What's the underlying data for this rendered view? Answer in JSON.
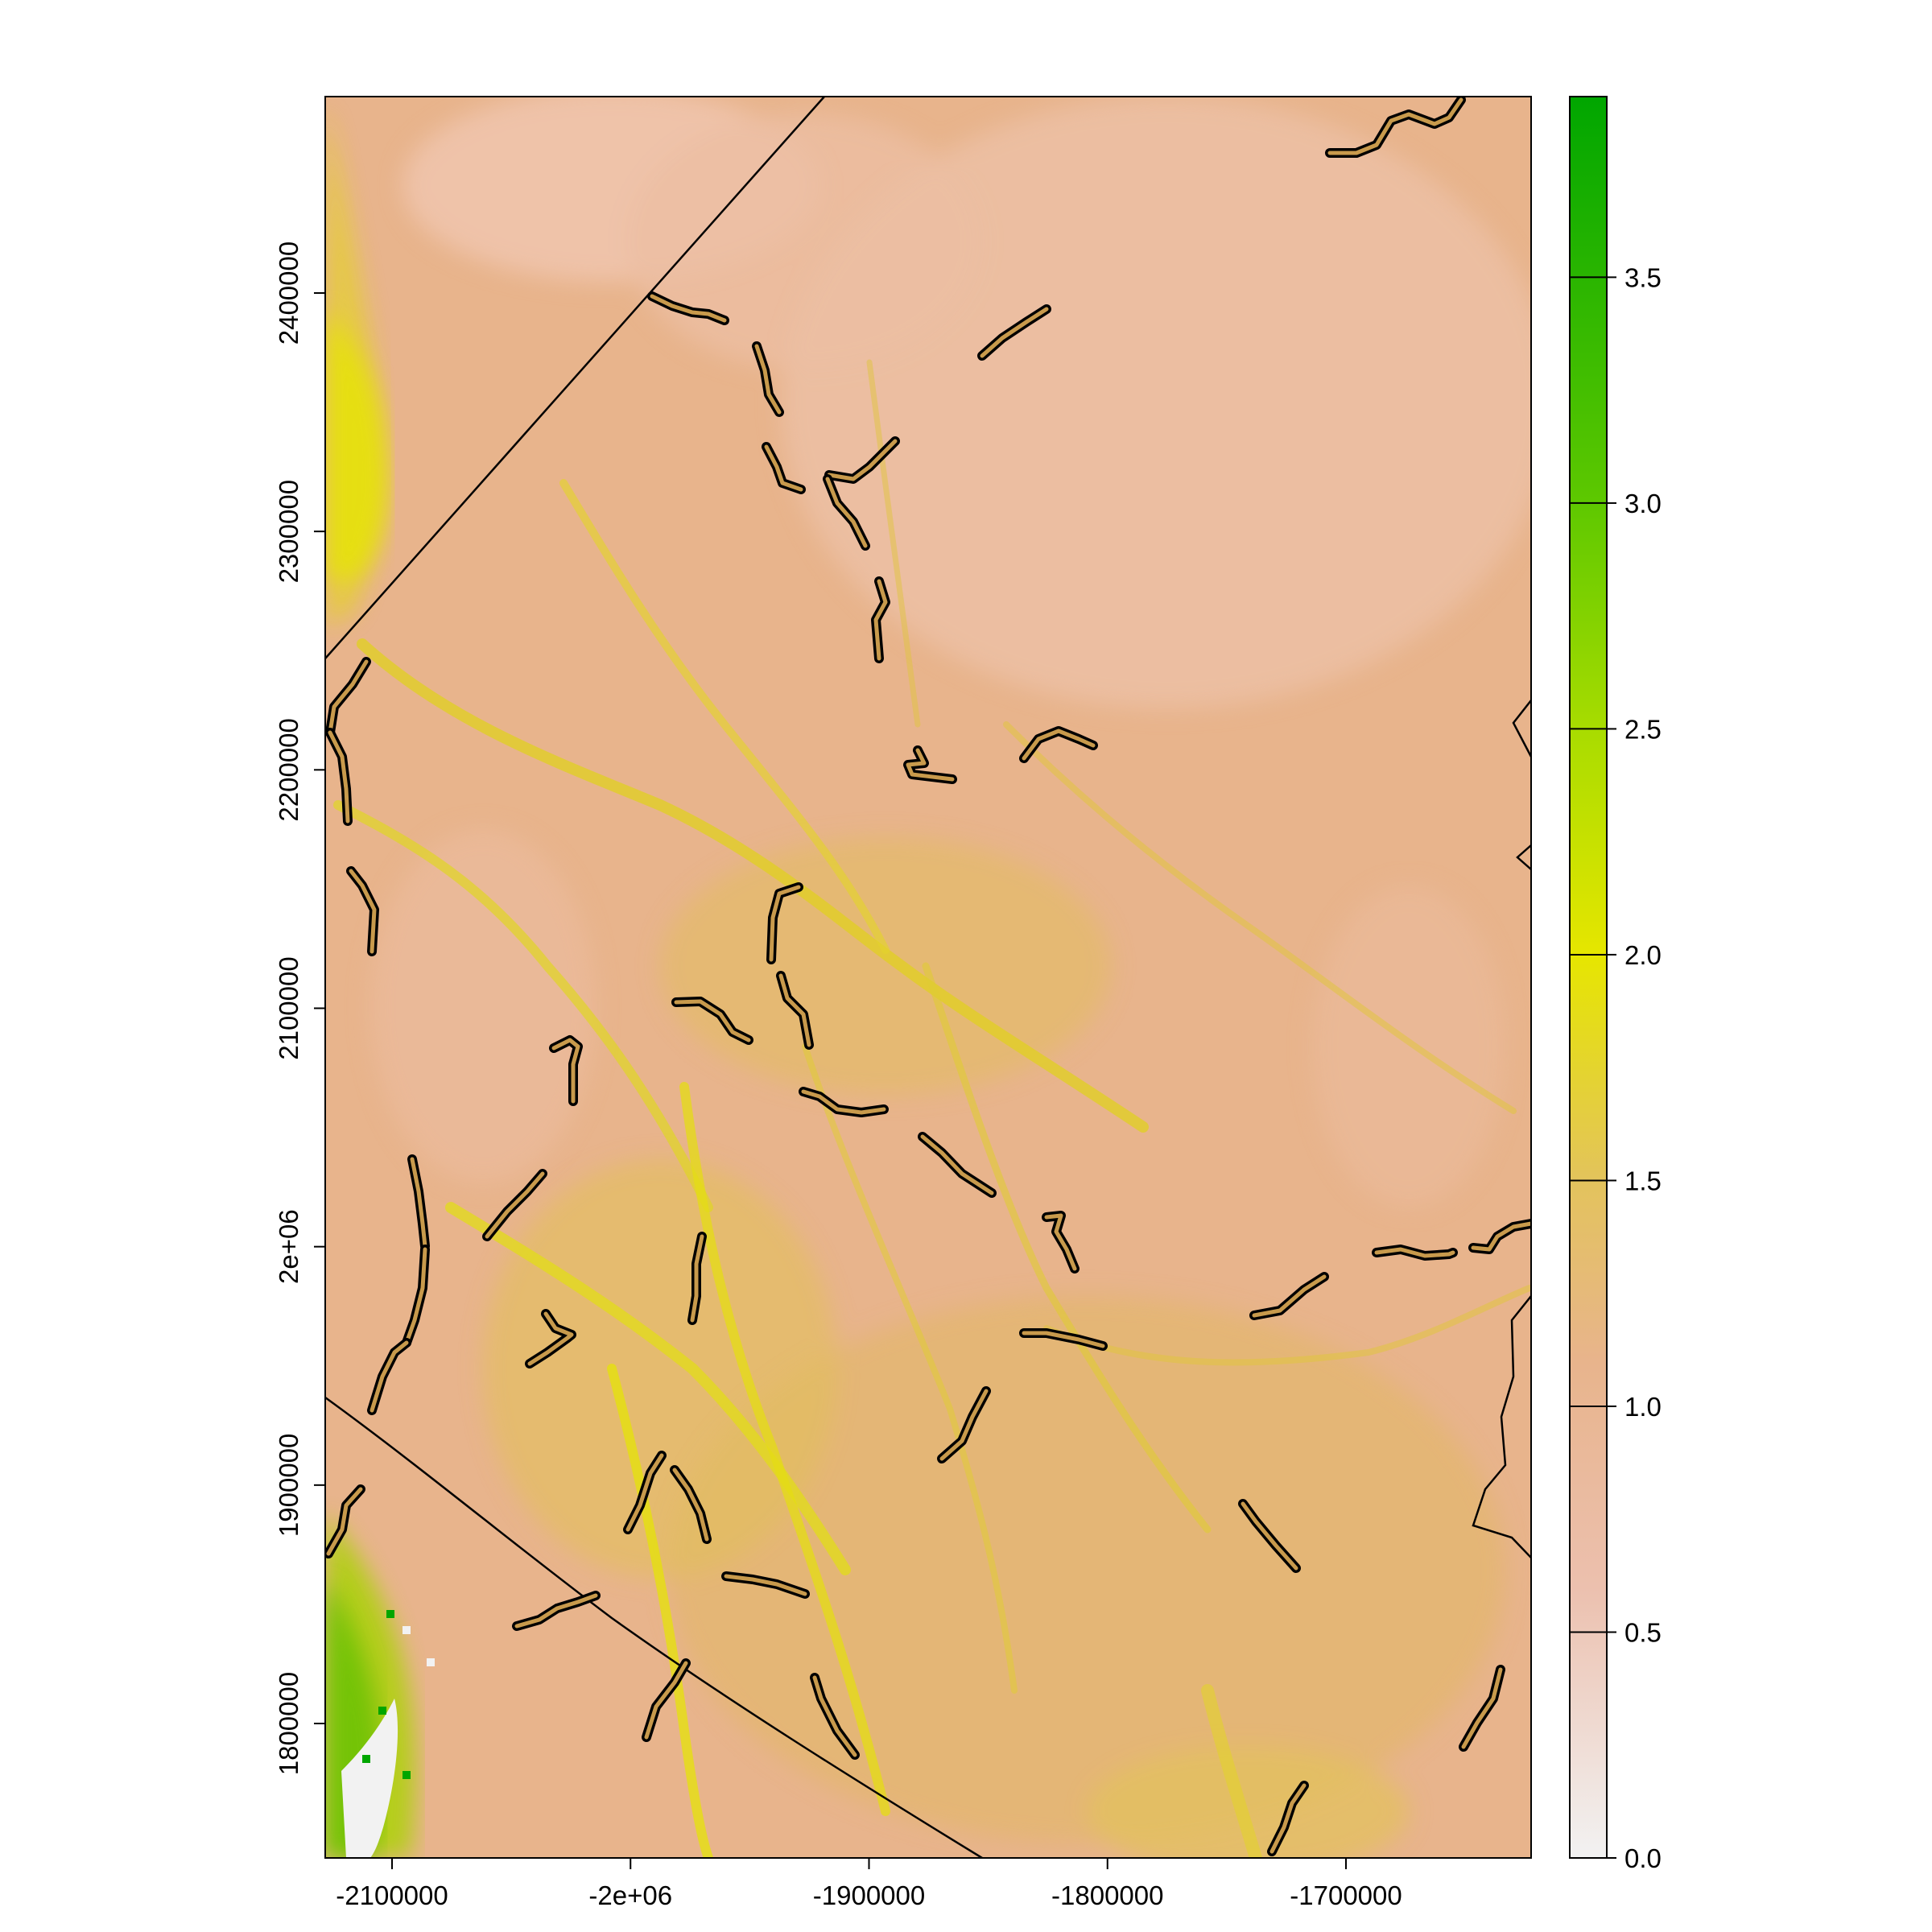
{
  "map": {
    "x_axis": {
      "ticks": [
        {
          "value": -2100000,
          "label": "-2100000"
        },
        {
          "value": -2000000,
          "label": "-2e+06"
        },
        {
          "value": -1900000,
          "label": "-1900000"
        },
        {
          "value": -1800000,
          "label": "-1800000"
        },
        {
          "value": -1700000,
          "label": "-1700000"
        }
      ]
    },
    "y_axis": {
      "ticks": [
        {
          "value": 1800000,
          "label": "1800000"
        },
        {
          "value": 1900000,
          "label": "1900000"
        },
        {
          "value": 2000000,
          "label": "2e+06"
        },
        {
          "value": 2100000,
          "label": "2100000"
        },
        {
          "value": 2200000,
          "label": "2200000"
        },
        {
          "value": 2300000,
          "label": "2300000"
        },
        {
          "value": 2400000,
          "label": "2400000"
        }
      ]
    },
    "colors": {
      "low": "#f2f2f2",
      "base": "#e8b48c",
      "mid": "#e0c060",
      "high": "#e6e600",
      "green": "#00a600"
    }
  },
  "legend": {
    "ticks": [
      {
        "value": 0.0,
        "label": "0.0"
      },
      {
        "value": 0.5,
        "label": "0.5"
      },
      {
        "value": 1.0,
        "label": "1.0"
      },
      {
        "value": 1.5,
        "label": "1.5"
      },
      {
        "value": 2.0,
        "label": "2.0"
      },
      {
        "value": 2.5,
        "label": "2.5"
      },
      {
        "value": 3.0,
        "label": "3.0"
      },
      {
        "value": 3.5,
        "label": "3.5"
      }
    ],
    "stops": [
      {
        "value": 0.0,
        "color": "#f2f2f2"
      },
      {
        "value": 0.6,
        "color": "#ecc0ae"
      },
      {
        "value": 1.1,
        "color": "#e8b48c"
      },
      {
        "value": 1.5,
        "color": "#e3c35c"
      },
      {
        "value": 2.0,
        "color": "#e6e600"
      },
      {
        "value": 2.5,
        "color": "#a8dc00"
      },
      {
        "value": 3.0,
        "color": "#5ec800"
      },
      {
        "value": 3.9,
        "color": "#00a600"
      }
    ]
  }
}
